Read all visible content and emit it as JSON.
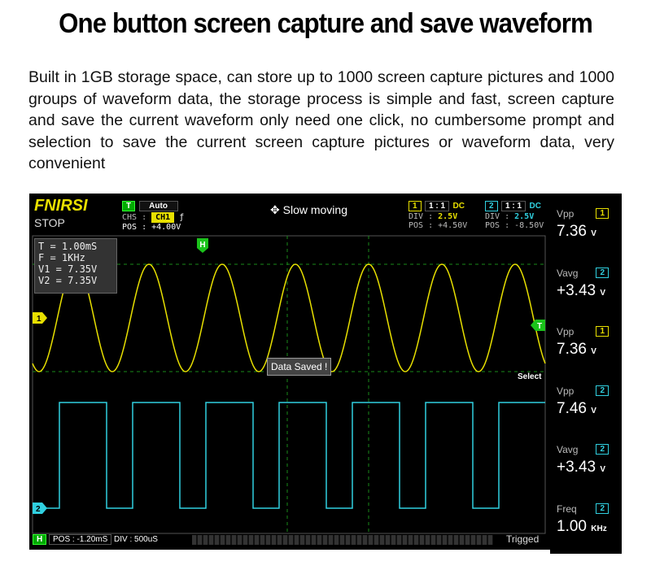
{
  "title": "One button screen capture and save waveform",
  "description": "Built in 1GB storage space, can store up to 1000 screen capture pictures and 1000 groups of waveform data, the storage process is simple and fast, screen capture and save the current waveform only need one click, no cumbersome prompt and selection to save the current screen capture pictures or waveform data, very convenient",
  "scope": {
    "logo": "FNIRSI",
    "state": "STOP",
    "trigger": {
      "tag": "T",
      "mode": "Auto",
      "chs_label": "CHS :",
      "chs": "CH1",
      "edge": "ƒ",
      "pos": "POS : +4.00V"
    },
    "move_mode": "Slow moving",
    "ch1": {
      "num": "1",
      "probe": "1 : 1",
      "coupling": "DC",
      "div_label": "DIV :",
      "div": "2.5V",
      "pos": "POS : +4.50V",
      "color": "#e8e000"
    },
    "ch2": {
      "num": "2",
      "probe": "1 : 1",
      "coupling": "DC",
      "div_label": "DIV :",
      "div": "2.5V",
      "pos": "POS : -8.50V",
      "color": "#30d0e0"
    },
    "cursor_info": [
      "T = 1.00mS",
      "F = 1KHz",
      "V1 = 7.35V",
      "V2 = 7.35V"
    ],
    "markers": {
      "h": "H",
      "ch1": "1",
      "ch2": "2",
      "trig": "T"
    },
    "toast": "Data Saved !",
    "select": "Select",
    "measurements": [
      {
        "label": "Vpp",
        "ch": "1",
        "value": "7.36",
        "unit": "V"
      },
      {
        "label": "Vavg",
        "ch": "2",
        "value": "+3.43",
        "unit": "V"
      },
      {
        "label": "Vpp",
        "ch": "1",
        "value": "7.36",
        "unit": "V"
      },
      {
        "label": "Vpp",
        "ch": "2",
        "value": "7.46",
        "unit": "V"
      },
      {
        "label": "Vavg",
        "ch": "2",
        "value": "+3.43",
        "unit": "V"
      },
      {
        "label": "Freq",
        "ch": "2",
        "value": "1.00",
        "unit": "KHz"
      }
    ],
    "bottom": {
      "h": "H",
      "pos": "POS : -1.20mS",
      "div": "DIV : 500uS",
      "status": "Trigged"
    }
  }
}
